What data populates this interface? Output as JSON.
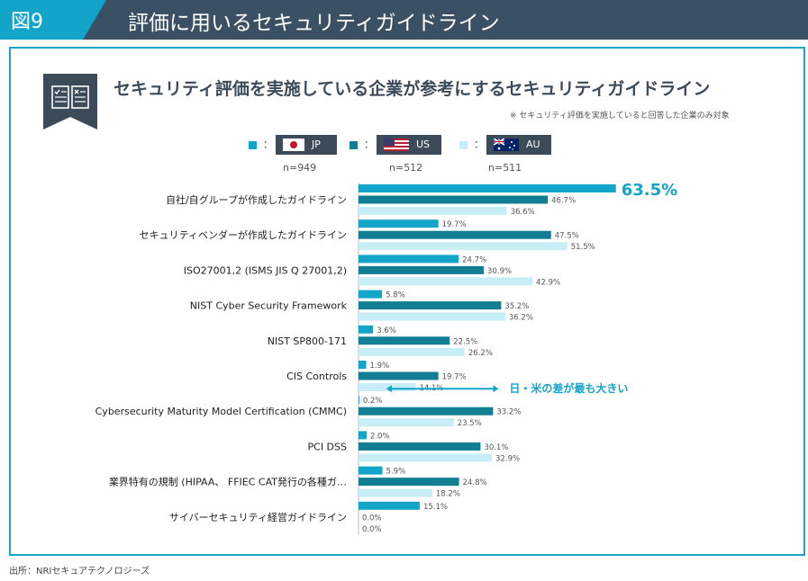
{
  "header": {
    "figure_label": "図9",
    "title": "評価に用いるセキュリティガイドライン"
  },
  "chart_title": "セキュリティ評価を実施している企業が参考にするセキュリティガイドライン",
  "note": "※ セキュリティ評価を実施していると回答した企業のみ対象",
  "source": "出所：NRIセキュアテクノロジーズ",
  "colors": {
    "JP": "#13a5c9",
    "US": "#127e94",
    "AU": "#c7eef7",
    "header": "#3b5163",
    "accent": "#13a5c9"
  },
  "legend": [
    {
      "code": "JP",
      "colon": "：",
      "n": "n=949",
      "flag": "japan-flag-icon"
    },
    {
      "code": "US",
      "colon": "：",
      "n": "n=512",
      "flag": "usa-flag-icon"
    },
    {
      "code": "AU",
      "colon": "：",
      "n": "n=511",
      "flag": "australia-flag-icon"
    }
  ],
  "chart_data": {
    "type": "bar",
    "orientation": "horizontal",
    "categories": [
      "自社/自グループが作成したガイドライン",
      "セキュリティベンダーが作成したガイドライン",
      "ISO27001,2 (ISMS JIS Q 27001,2)",
      "NIST Cyber Security Framework",
      "NIST SP800-171",
      "CIS Controls",
      "Cybersecurity Maturity Model Certification (CMMC)",
      "PCI DSS",
      "業界特有の規制 (HIPAA、 FFIEC CAT発行の各種ガ…",
      "サイバーセキュリティ経営ガイドライン"
    ],
    "series": [
      {
        "name": "JP",
        "values": [
          63.5,
          19.7,
          24.7,
          5.8,
          3.6,
          1.9,
          0.2,
          2.0,
          5.9,
          15.1
        ]
      },
      {
        "name": "US",
        "values": [
          46.7,
          47.5,
          30.9,
          35.2,
          22.5,
          19.7,
          33.2,
          30.1,
          24.8,
          0.0
        ]
      },
      {
        "name": "AU",
        "values": [
          36.6,
          51.5,
          42.9,
          36.2,
          26.2,
          14.1,
          23.5,
          32.9,
          18.2,
          0.0
        ]
      }
    ],
    "value_labels": [
      [
        "63.5%",
        "46.7%",
        "36.6%"
      ],
      [
        "19.7%",
        "47.5%",
        "51.5%"
      ],
      [
        "24.7%",
        "30.9%",
        "42.9%"
      ],
      [
        "5.8%",
        "35.2%",
        "36.2%"
      ],
      [
        "3.6%",
        "22.5%",
        "26.2%"
      ],
      [
        "1.9%",
        "19.7%",
        "14.1%"
      ],
      [
        "0.2%",
        "33.2%",
        "23.5%"
      ],
      [
        "2.0%",
        "30.1%",
        "32.9%"
      ],
      [
        "5.9%",
        "24.8%",
        "18.2%"
      ],
      [
        "15.1%",
        "0.0%",
        "0.0%"
      ]
    ],
    "annotation": {
      "text": "日・米の差が最も大きい",
      "category_index": 6
    }
  }
}
